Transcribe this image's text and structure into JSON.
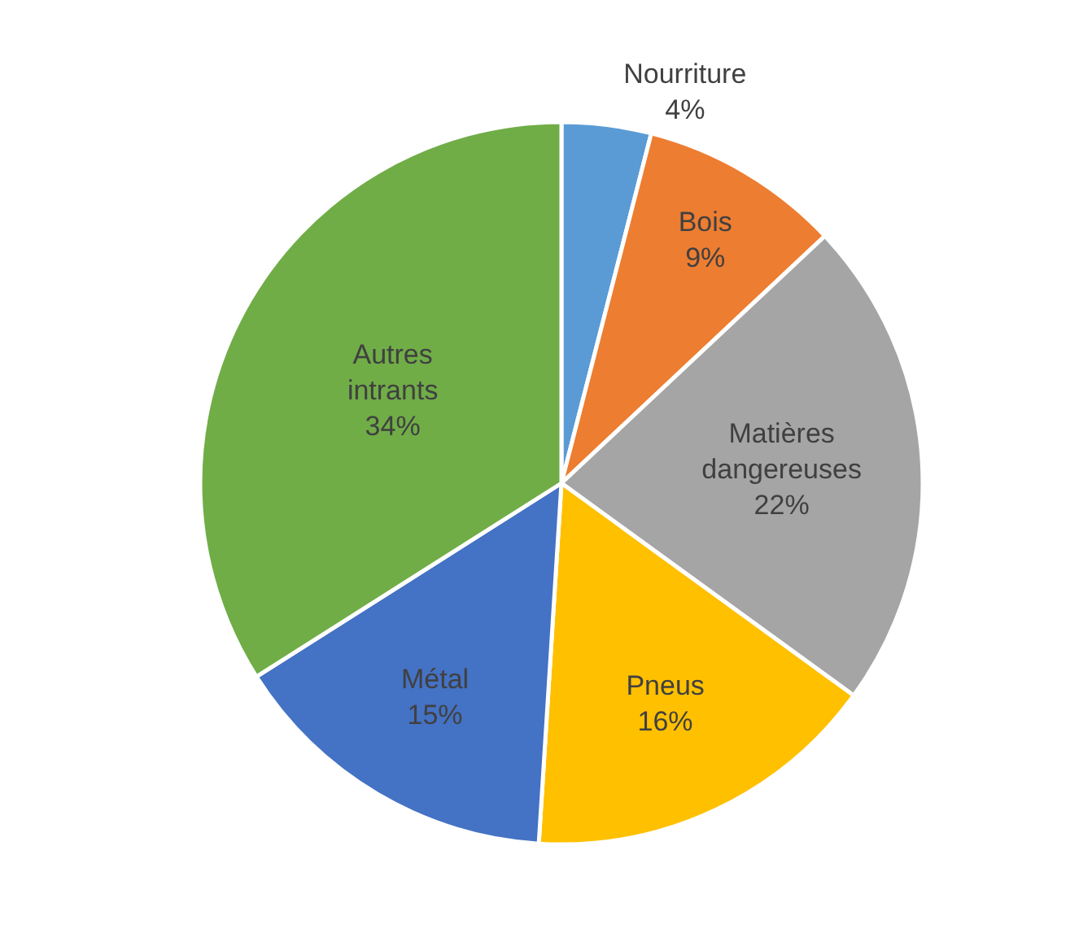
{
  "chart_data": {
    "type": "pie",
    "categories": [
      "Nourriture",
      "Bois",
      "Matières dangereuses",
      "Pneus",
      "Métal",
      "Autres intrants"
    ],
    "values": [
      4,
      9,
      22,
      16,
      15,
      34
    ],
    "value_labels": [
      "4%",
      "9%",
      "22%",
      "16%",
      "15%",
      "34%"
    ],
    "colors": [
      "#5b9bd5",
      "#ed7d31",
      "#a5a5a5",
      "#ffc000",
      "#4472c4",
      "#70ad47"
    ],
    "legend": false
  }
}
